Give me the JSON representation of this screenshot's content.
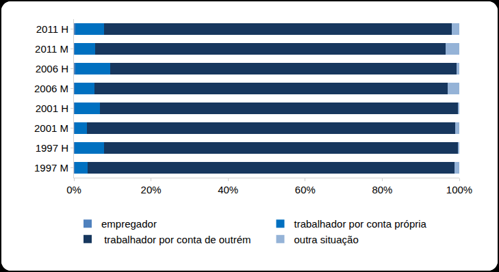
{
  "chart_data": {
    "type": "bar",
    "orientation": "horizontal",
    "stacked": true,
    "grid": false,
    "legend": "bottom",
    "categories": [
      "2011 H",
      "2011 M",
      "2006 H",
      "2006 M",
      "2001 H",
      "2001 M",
      "1997 H",
      "1997 M"
    ],
    "xlim": [
      0,
      100
    ],
    "xticks": [
      {
        "value": 0,
        "label": "0%"
      },
      {
        "value": 20,
        "label": "20%"
      },
      {
        "value": 40,
        "label": "40%"
      },
      {
        "value": 60,
        "label": "60%"
      },
      {
        "value": 80,
        "label": "80%"
      },
      {
        "value": 100,
        "label": "100%"
      }
    ],
    "series": [
      {
        "name": "empregador",
        "color": "#4f81bd",
        "values": [
          0.3,
          0.2,
          0.3,
          0.2,
          0.2,
          0.1,
          0.2,
          0.1
        ]
      },
      {
        "name": "trabalhador por conta própria",
        "color": "#0070c0",
        "values": [
          7.5,
          5.3,
          9.2,
          5.2,
          6.5,
          3.2,
          7.6,
          3.5
        ]
      },
      {
        "name": " trabalhador por conta de outrém",
        "color": "#17375e",
        "values": [
          90.2,
          91.0,
          89.7,
          91.5,
          92.9,
          95.7,
          91.8,
          95.2
        ]
      },
      {
        "name": "outra situação",
        "color": "#95b3d7",
        "values": [
          2.0,
          3.5,
          0.8,
          3.1,
          0.4,
          1.0,
          0.4,
          1.2
        ]
      }
    ]
  }
}
